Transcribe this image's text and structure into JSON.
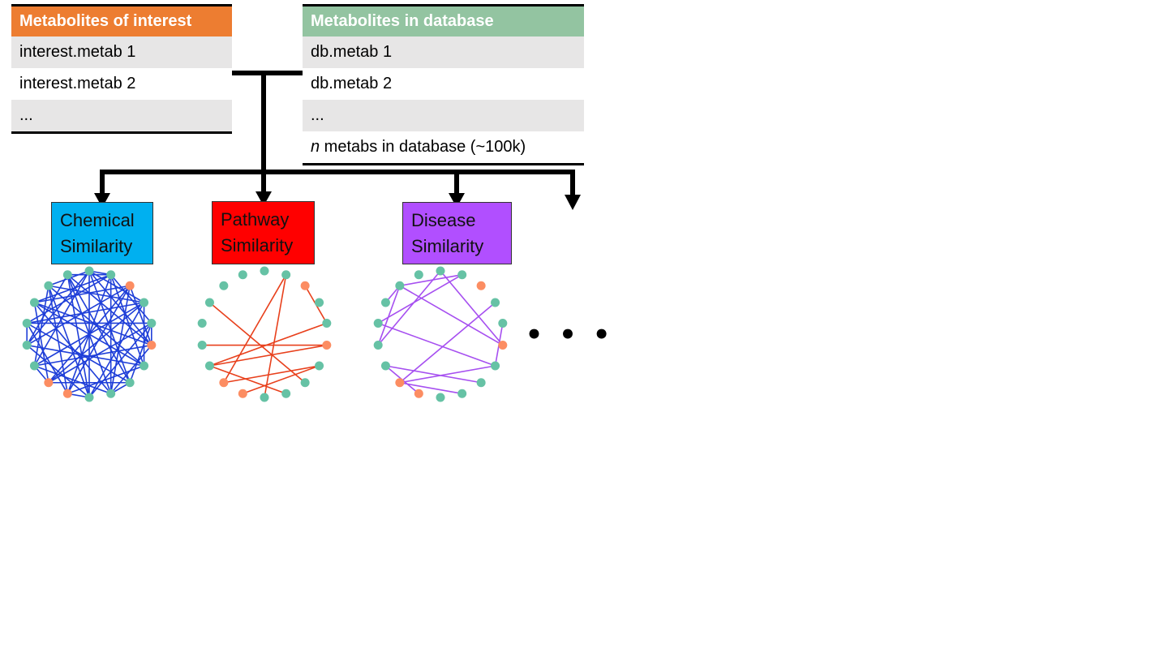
{
  "interest_table": {
    "header": "Metabolites of interest",
    "rows": [
      "interest.metab 1",
      "interest.metab 2",
      "..."
    ]
  },
  "database_table": {
    "header": "Metabolites in database",
    "rows": [
      "db.metab 1",
      "db.metab 2",
      "..."
    ],
    "last_row_italic": "n",
    "last_row_rest": " metabs in database (~100k)"
  },
  "similarity_boxes": {
    "chemical": {
      "line1": "Chemical",
      "line2": "Similarity",
      "color": "#00b0f0"
    },
    "pathway": {
      "line1": "Pathway",
      "line2": "Similarity",
      "color": "#ff0000"
    },
    "disease": {
      "line1": "Disease",
      "line2": "Similarity",
      "color": "#b14fff"
    }
  },
  "continuation": "• • •",
  "colors": {
    "interest_header": "#ed7d31",
    "database_header": "#93c4a1",
    "node_database": "#66c2a5",
    "node_interest": "#fc8d62",
    "edge_chemical": "#1f3fd8",
    "edge_pathway": "#e8401c",
    "edge_disease": "#a64ff0"
  },
  "networks": {
    "node_count": 18,
    "interest_nodes": [
      2,
      5,
      10,
      11
    ],
    "chemical_edges": [
      [
        0,
        3
      ],
      [
        0,
        7
      ],
      [
        0,
        9
      ],
      [
        0,
        13
      ],
      [
        0,
        16
      ],
      [
        1,
        4
      ],
      [
        1,
        6
      ],
      [
        1,
        10
      ],
      [
        1,
        14
      ],
      [
        1,
        17
      ],
      [
        2,
        5
      ],
      [
        2,
        8
      ],
      [
        2,
        11
      ],
      [
        2,
        15
      ],
      [
        3,
        6
      ],
      [
        3,
        9
      ],
      [
        3,
        12
      ],
      [
        3,
        16
      ],
      [
        4,
        7
      ],
      [
        4,
        11
      ],
      [
        4,
        14
      ],
      [
        5,
        8
      ],
      [
        5,
        12
      ],
      [
        5,
        15
      ],
      [
        5,
        17
      ],
      [
        6,
        10
      ],
      [
        6,
        13
      ],
      [
        6,
        16
      ],
      [
        7,
        11
      ],
      [
        7,
        14
      ],
      [
        7,
        17
      ],
      [
        8,
        12
      ],
      [
        8,
        15
      ],
      [
        9,
        13
      ],
      [
        9,
        17
      ],
      [
        10,
        14
      ],
      [
        10,
        16
      ],
      [
        11,
        15
      ],
      [
        12,
        16
      ],
      [
        13,
        17
      ],
      [
        0,
        5
      ],
      [
        2,
        13
      ],
      [
        4,
        9
      ],
      [
        8,
        17
      ],
      [
        1,
        8
      ],
      [
        3,
        11
      ],
      [
        6,
        15
      ],
      [
        10,
        2
      ],
      [
        12,
        0
      ],
      [
        14,
        3
      ],
      [
        15,
        1
      ],
      [
        16,
        9
      ],
      [
        0,
        1
      ],
      [
        4,
        5
      ],
      [
        7,
        8
      ],
      [
        11,
        12
      ],
      [
        13,
        14
      ],
      [
        9,
        10
      ]
    ],
    "pathway_edges": [
      [
        1,
        9
      ],
      [
        2,
        4
      ],
      [
        4,
        12
      ],
      [
        5,
        13
      ],
      [
        5,
        12
      ],
      [
        6,
        11
      ],
      [
        6,
        10
      ],
      [
        7,
        15
      ],
      [
        8,
        12
      ],
      [
        1,
        11
      ]
    ],
    "disease_edges": [
      [
        1,
        16
      ],
      [
        0,
        13
      ],
      [
        0,
        5
      ],
      [
        1,
        14
      ],
      [
        3,
        11
      ],
      [
        4,
        6
      ],
      [
        5,
        16
      ],
      [
        6,
        14
      ],
      [
        6,
        11
      ],
      [
        7,
        12
      ],
      [
        8,
        11
      ],
      [
        10,
        12
      ],
      [
        13,
        16
      ],
      [
        15,
        16
      ]
    ]
  }
}
